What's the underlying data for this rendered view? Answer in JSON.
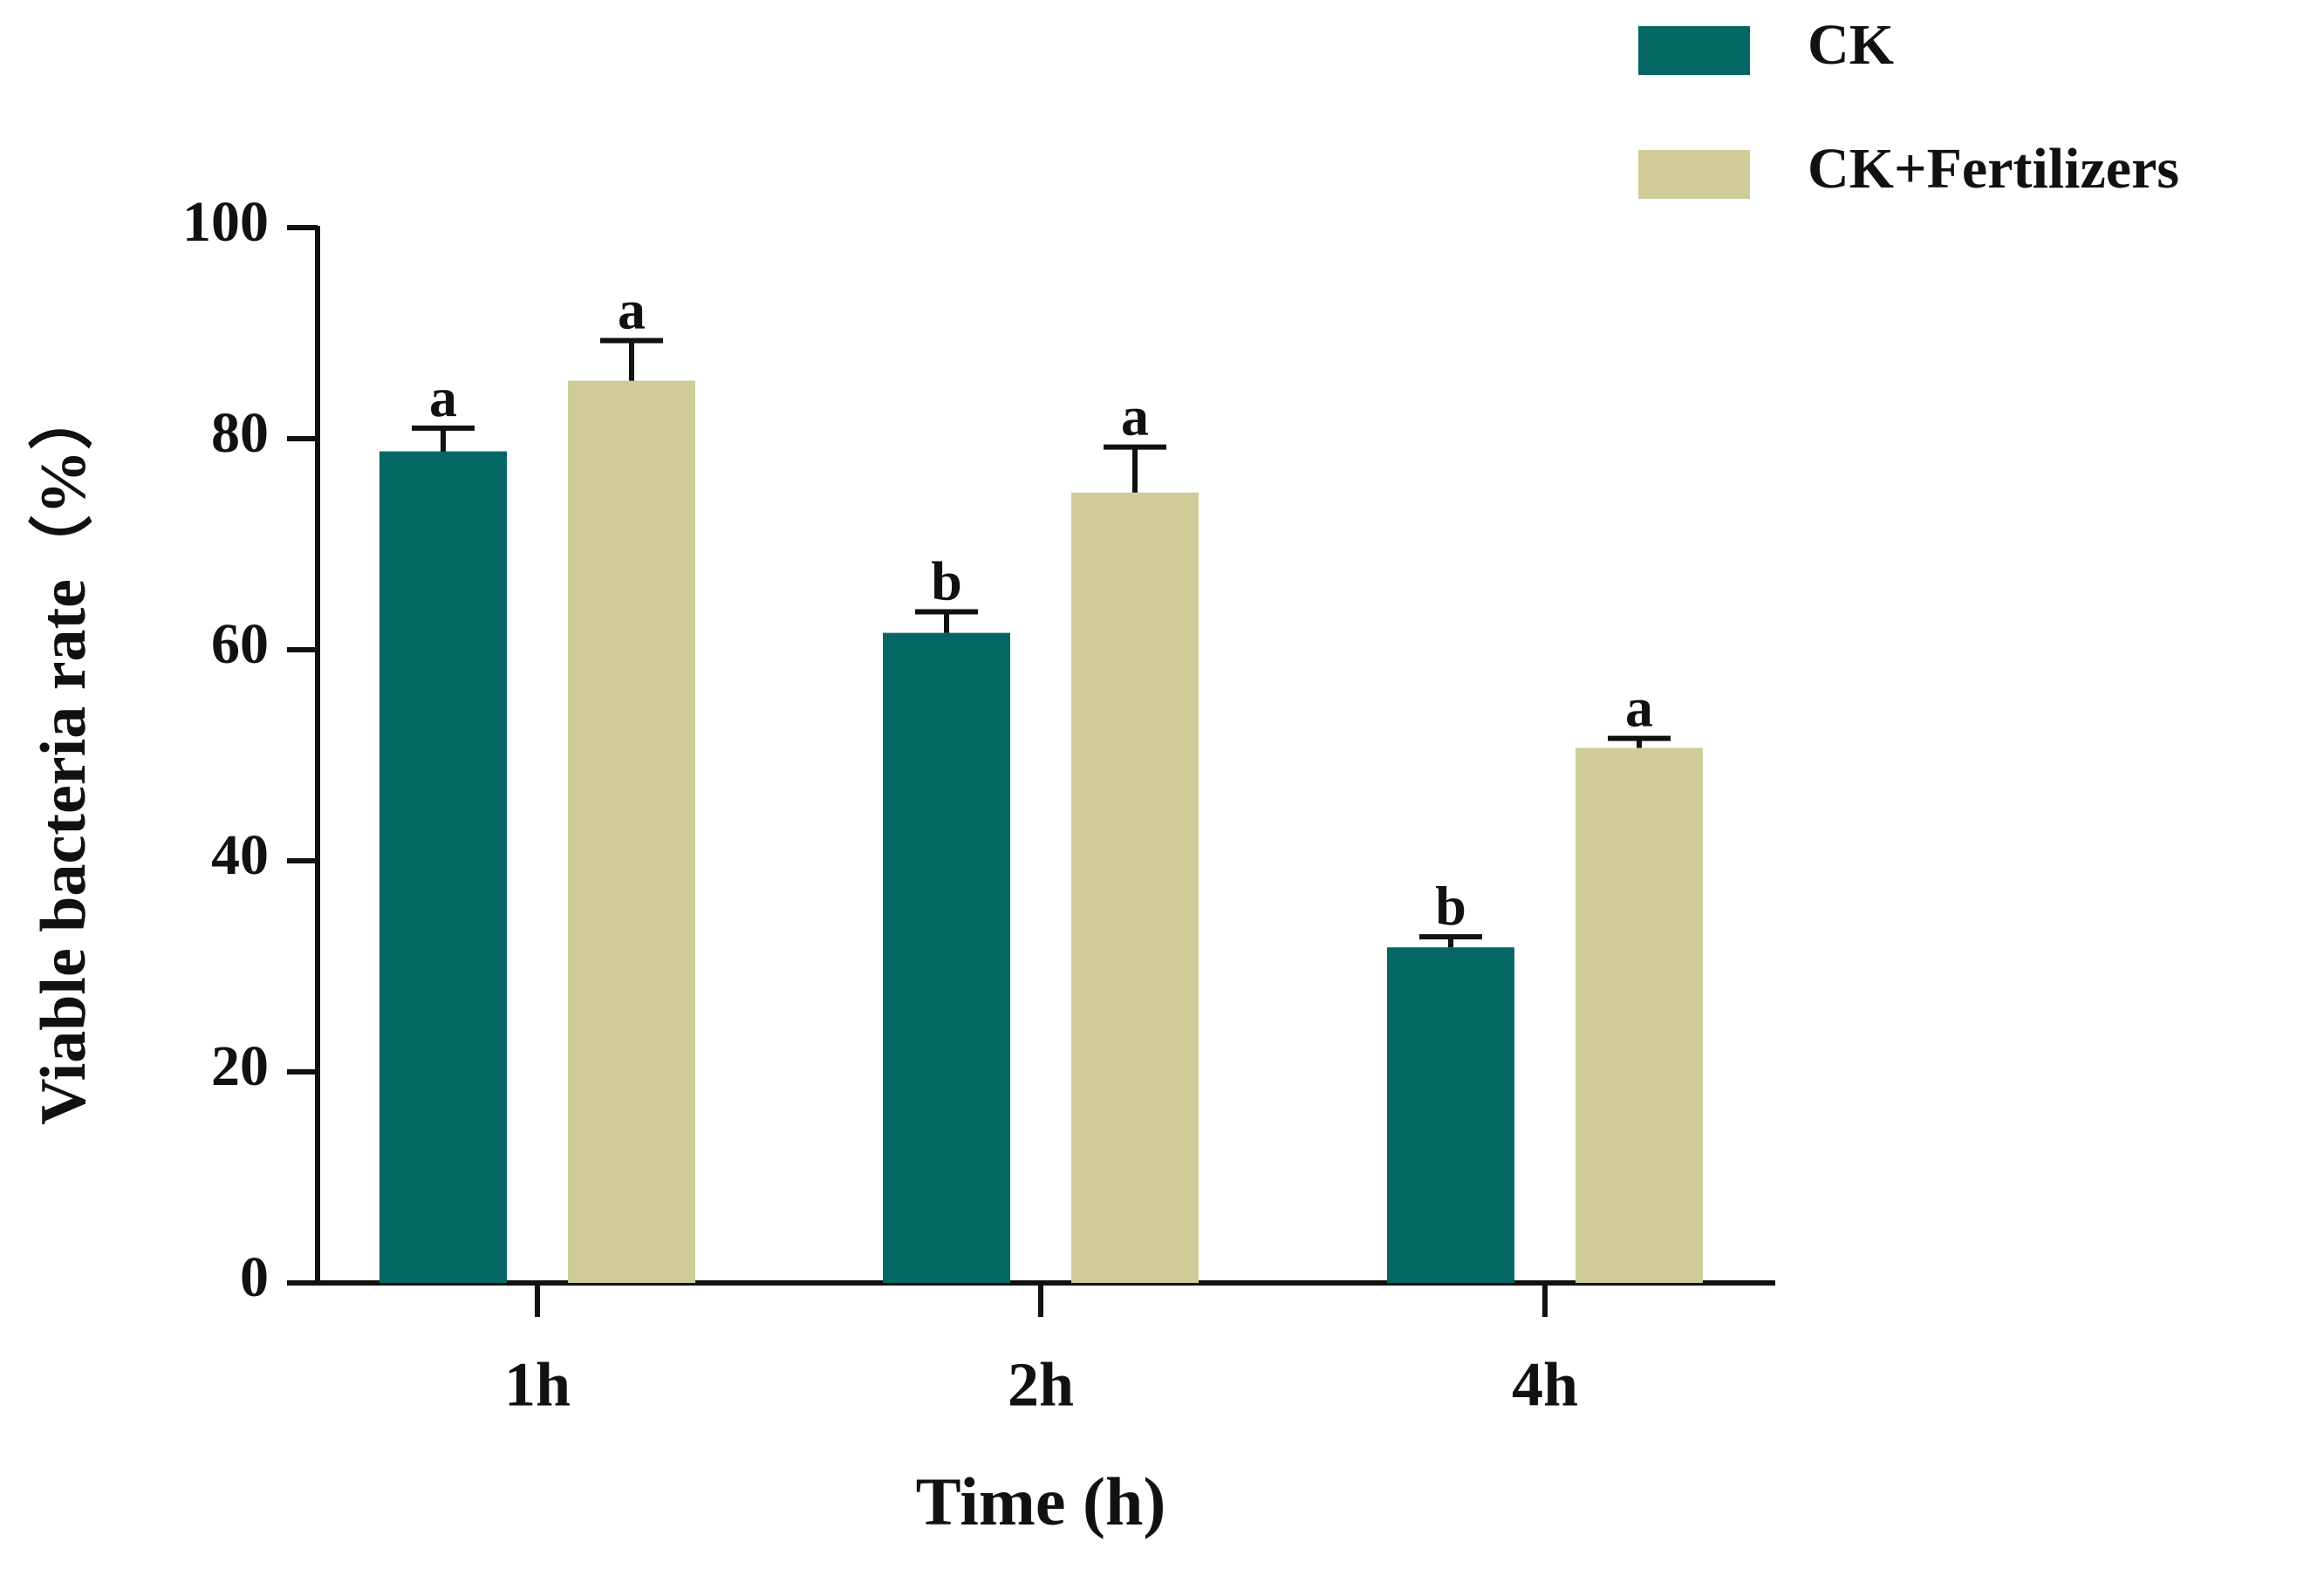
{
  "chart_data": {
    "type": "bar",
    "title": "",
    "xlabel": "Time (h)",
    "ylabel": "Viable bacteria rate（%）",
    "ylim": [
      0,
      100
    ],
    "yticks": [
      0,
      20,
      40,
      60,
      80,
      100
    ],
    "ytick_labels": [
      "0",
      "20",
      "40",
      "60",
      "80",
      "100"
    ],
    "categories": [
      "1h",
      "2h",
      "4h"
    ],
    "legend_position": "top-right",
    "series": [
      {
        "name": "CK",
        "color": "#046764",
        "values": [
          78.8,
          61.6,
          31.8
        ],
        "errors": [
          2.2,
          2.0,
          1.0
        ],
        "significance": [
          "a",
          "b",
          "b"
        ]
      },
      {
        "name": "CK+Fertilizers",
        "color": "#d0cc99",
        "values": [
          85.5,
          74.9,
          50.7
        ],
        "errors": [
          3.8,
          4.3,
          0.9
        ],
        "significance": [
          "a",
          "a",
          "a"
        ]
      }
    ]
  }
}
